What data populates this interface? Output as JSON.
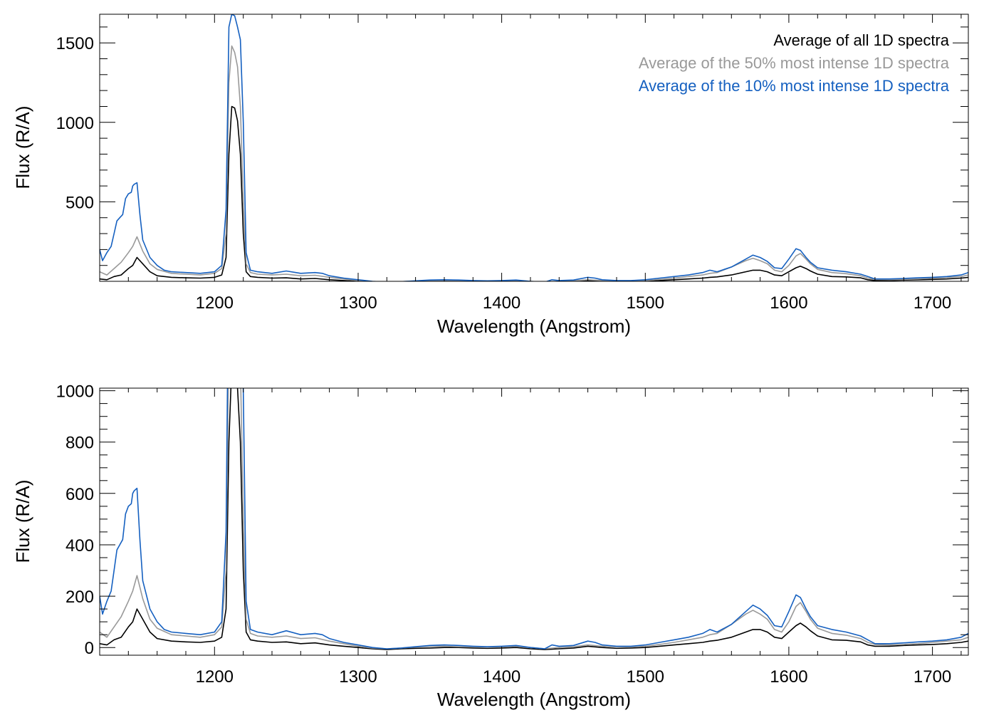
{
  "colors": {
    "all": "#000000",
    "top50": "#999999",
    "top10": "#1560c0"
  },
  "legend": {
    "placement": "top-right",
    "entries": [
      {
        "key": "all",
        "label": "Average of all 1D spectra"
      },
      {
        "key": "top50",
        "label": "Average of the 50% most intense 1D spectra"
      },
      {
        "key": "top10",
        "label": "Average of the 10% most intense 1D spectra"
      }
    ]
  },
  "chart_data": [
    {
      "type": "line",
      "title": "",
      "xlabel": "Wavelength (Angstrom)",
      "ylabel": "Flux (R/A)",
      "xlim": [
        1120,
        1725
      ],
      "ylim": [
        0,
        1680
      ],
      "xticks": [
        1200,
        1300,
        1400,
        1500,
        1600,
        1700
      ],
      "yticks": [
        500,
        1000,
        1500
      ],
      "grid": false,
      "legend": "top-right"
    },
    {
      "type": "line",
      "title": "",
      "xlabel": "Wavelength (Angstrom)",
      "ylabel": "Flux (R/A)",
      "xlim": [
        1120,
        1725
      ],
      "ylim": [
        -30,
        1010
      ],
      "xticks": [
        1200,
        1300,
        1400,
        1500,
        1600,
        1700
      ],
      "yticks": [
        0,
        200,
        400,
        600,
        800,
        1000
      ],
      "grid": false,
      "legend": "none"
    }
  ],
  "series": [
    {
      "name": "Average of all 1D spectra",
      "key": "all",
      "x": [
        1120,
        1125,
        1130,
        1135,
        1140,
        1143,
        1146,
        1150,
        1155,
        1160,
        1170,
        1180,
        1190,
        1200,
        1205,
        1208,
        1210,
        1212,
        1214,
        1216,
        1218,
        1220,
        1222,
        1225,
        1230,
        1240,
        1250,
        1260,
        1270,
        1280,
        1290,
        1300,
        1310,
        1320,
        1330,
        1340,
        1350,
        1360,
        1370,
        1380,
        1390,
        1400,
        1410,
        1420,
        1430,
        1440,
        1450,
        1460,
        1470,
        1480,
        1490,
        1500,
        1510,
        1520,
        1530,
        1540,
        1545,
        1550,
        1560,
        1570,
        1575,
        1580,
        1585,
        1590,
        1595,
        1600,
        1605,
        1608,
        1612,
        1615,
        1620,
        1630,
        1640,
        1650,
        1655,
        1660,
        1670,
        1680,
        1690,
        1700,
        1710,
        1720,
        1725
      ],
      "y": [
        15,
        10,
        30,
        40,
        80,
        100,
        150,
        110,
        60,
        35,
        25,
        22,
        20,
        25,
        40,
        150,
        800,
        1100,
        1090,
        1010,
        800,
        300,
        60,
        30,
        25,
        20,
        22,
        15,
        18,
        10,
        5,
        0,
        -5,
        -8,
        -5,
        -3,
        -2,
        0,
        0,
        -2,
        -3,
        -2,
        0,
        -5,
        -8,
        -5,
        -2,
        5,
        0,
        -3,
        -2,
        0,
        5,
        10,
        15,
        20,
        25,
        28,
        40,
        60,
        70,
        70,
        60,
        40,
        35,
        60,
        85,
        95,
        80,
        65,
        45,
        30,
        28,
        22,
        10,
        5,
        5,
        8,
        10,
        12,
        15,
        20,
        25
      ]
    },
    {
      "name": "Average of the 50% most intense 1D spectra",
      "key": "top50",
      "x": [
        1120,
        1125,
        1130,
        1135,
        1140,
        1143,
        1146,
        1150,
        1155,
        1160,
        1170,
        1180,
        1190,
        1200,
        1205,
        1208,
        1210,
        1212,
        1214,
        1216,
        1218,
        1220,
        1222,
        1225,
        1230,
        1240,
        1250,
        1260,
        1270,
        1280,
        1290,
        1300,
        1310,
        1320,
        1330,
        1340,
        1350,
        1360,
        1370,
        1380,
        1390,
        1400,
        1410,
        1420,
        1430,
        1440,
        1450,
        1460,
        1470,
        1480,
        1490,
        1500,
        1510,
        1520,
        1530,
        1540,
        1545,
        1550,
        1560,
        1570,
        1575,
        1580,
        1585,
        1590,
        1595,
        1600,
        1605,
        1608,
        1612,
        1615,
        1620,
        1630,
        1640,
        1650,
        1655,
        1660,
        1670,
        1680,
        1690,
        1700,
        1710,
        1720,
        1725
      ],
      "y": [
        60,
        40,
        80,
        120,
        180,
        220,
        280,
        190,
        110,
        75,
        50,
        45,
        40,
        50,
        80,
        300,
        1250,
        1480,
        1440,
        1350,
        1100,
        500,
        110,
        55,
        45,
        40,
        45,
        35,
        38,
        25,
        15,
        5,
        -2,
        -5,
        -2,
        2,
        5,
        5,
        3,
        2,
        0,
        2,
        5,
        0,
        -5,
        0,
        3,
        10,
        5,
        0,
        2,
        5,
        12,
        20,
        30,
        40,
        50,
        55,
        90,
        130,
        145,
        130,
        110,
        70,
        60,
        100,
        160,
        175,
        140,
        110,
        75,
        55,
        48,
        35,
        20,
        12,
        10,
        12,
        15,
        20,
        25,
        30,
        40
      ]
    },
    {
      "name": "Average of the 10% most intense 1D spectra",
      "key": "top10",
      "x": [
        1120,
        1122,
        1125,
        1128,
        1130,
        1132,
        1134,
        1136,
        1138,
        1140,
        1142,
        1143,
        1144,
        1146,
        1148,
        1150,
        1155,
        1160,
        1165,
        1170,
        1180,
        1190,
        1200,
        1205,
        1208,
        1210,
        1212,
        1214,
        1216,
        1218,
        1220,
        1222,
        1225,
        1230,
        1240,
        1250,
        1260,
        1270,
        1275,
        1280,
        1290,
        1300,
        1310,
        1320,
        1330,
        1340,
        1350,
        1360,
        1370,
        1380,
        1390,
        1400,
        1410,
        1420,
        1430,
        1435,
        1440,
        1450,
        1460,
        1465,
        1470,
        1480,
        1490,
        1500,
        1510,
        1520,
        1530,
        1540,
        1545,
        1550,
        1560,
        1570,
        1575,
        1580,
        1585,
        1590,
        1595,
        1600,
        1605,
        1608,
        1612,
        1615,
        1620,
        1630,
        1640,
        1650,
        1655,
        1660,
        1670,
        1680,
        1690,
        1700,
        1710,
        1720,
        1725
      ],
      "y": [
        200,
        130,
        180,
        220,
        300,
        380,
        400,
        420,
        520,
        550,
        560,
        600,
        610,
        620,
        420,
        260,
        150,
        100,
        70,
        60,
        55,
        50,
        60,
        100,
        450,
        1600,
        1680,
        1670,
        1600,
        1520,
        1000,
        180,
        70,
        60,
        50,
        65,
        50,
        55,
        50,
        35,
        20,
        10,
        0,
        -5,
        -2,
        3,
        8,
        10,
        8,
        5,
        3,
        5,
        8,
        0,
        -5,
        10,
        5,
        8,
        25,
        20,
        10,
        5,
        5,
        10,
        20,
        30,
        40,
        55,
        70,
        60,
        90,
        140,
        165,
        150,
        125,
        85,
        80,
        140,
        205,
        195,
        150,
        120,
        85,
        70,
        60,
        45,
        30,
        15,
        15,
        18,
        22,
        25,
        30,
        40,
        55
      ]
    }
  ]
}
